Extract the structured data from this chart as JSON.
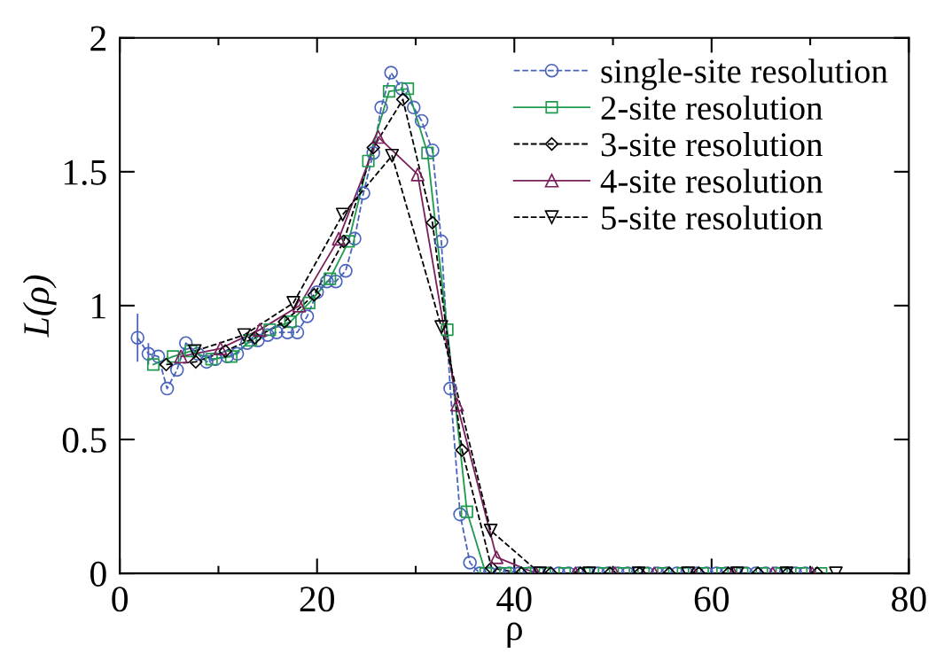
{
  "chart_data": {
    "type": "line",
    "xlabel": "ρ",
    "ylabel": "L(ρ)",
    "xlim": [
      0,
      80
    ],
    "ylim": [
      0,
      2
    ],
    "xticks": [
      0,
      20,
      40,
      60,
      80
    ],
    "yticks": [
      0,
      0.5,
      1,
      1.5,
      2
    ],
    "legend": "top right",
    "grid": false,
    "series": [
      {
        "name": "single-site resolution",
        "color": "#4a64bd",
        "marker": "circle",
        "line_style": "dashed",
        "x": [
          1.8,
          2.9,
          3.9,
          4.8,
          5.8,
          6.7,
          7.9,
          8.8,
          9.7,
          10.9,
          11.9,
          12.9,
          14.0,
          15.0,
          15.9,
          17.0,
          18.0,
          19.0,
          20.0,
          21.0,
          21.9,
          22.9,
          23.8,
          24.7,
          25.7,
          26.5,
          27.5,
          28.6,
          29.8,
          30.6,
          31.7,
          32.6,
          33.5,
          34.5,
          35.5,
          36.5,
          37.5,
          38.5,
          39.5,
          40.5,
          41.5,
          42.5,
          43.5,
          44.5,
          45.5,
          46.5,
          47.5,
          48.5,
          49.5,
          50.5,
          51.5,
          52.5,
          53.5,
          54.5,
          55.5,
          56.5,
          57.5,
          58.5,
          59.5,
          60.5,
          61.5,
          62.5,
          63.5,
          64.5,
          65.5,
          66.5,
          67.5,
          68.5,
          69.5
        ],
        "values": [
          0.88,
          0.82,
          0.81,
          0.69,
          0.76,
          0.86,
          0.82,
          0.79,
          0.8,
          0.81,
          0.82,
          0.86,
          0.87,
          0.89,
          0.9,
          0.9,
          0.9,
          0.96,
          1.05,
          1.09,
          1.09,
          1.13,
          1.25,
          1.42,
          1.57,
          1.74,
          1.87,
          1.81,
          1.74,
          1.69,
          1.58,
          1.24,
          0.69,
          0.22,
          0.04,
          0,
          0,
          0,
          0,
          0,
          0,
          0,
          0,
          0,
          0,
          0,
          0,
          0,
          0,
          0,
          0,
          0,
          0,
          0,
          0,
          0,
          0,
          0,
          0,
          0,
          0,
          0,
          0,
          0,
          0,
          0,
          0,
          0,
          0
        ],
        "errors": [
          0.09,
          0.04,
          null,
          null,
          null,
          null,
          null,
          null,
          null,
          null,
          null,
          null,
          null,
          null,
          null,
          null,
          null,
          null,
          null,
          null,
          null,
          null,
          null,
          null,
          null,
          null,
          null,
          null,
          null,
          null,
          null,
          null,
          null,
          null,
          null,
          null,
          null,
          null,
          null,
          null,
          null,
          null,
          null,
          null,
          null,
          null,
          null,
          null,
          null,
          null,
          null,
          null,
          null,
          null,
          null,
          null,
          null,
          null,
          null,
          null,
          null,
          null,
          null,
          null,
          null,
          null,
          null,
          null,
          null
        ]
      },
      {
        "name": "2-site resolution",
        "color": "#1e9a4e",
        "marker": "square",
        "line_style": "solid",
        "x": [
          3.4,
          5.4,
          7.2,
          9.3,
          11.3,
          13.3,
          15.2,
          17.3,
          19.2,
          21.3,
          23.2,
          25.2,
          27.3,
          29.2,
          31.2,
          33.2,
          35.2,
          37.1,
          39.1,
          41.1,
          43.1,
          45.1,
          47.1,
          49.1,
          51.1,
          53.1,
          55.1,
          57.1,
          59.1,
          61.1,
          63.1,
          65.1,
          67.1,
          69.1,
          71.1
        ],
        "values": [
          0.78,
          0.81,
          0.83,
          0.8,
          0.81,
          0.87,
          0.91,
          0.94,
          1.01,
          1.1,
          1.24,
          1.54,
          1.8,
          1.81,
          1.57,
          0.91,
          0.23,
          0,
          0,
          0,
          0,
          0,
          0,
          0,
          0,
          0,
          0,
          0,
          0,
          0,
          0,
          0,
          0,
          0,
          0
        ]
      },
      {
        "name": "3-site resolution",
        "color": "#000000",
        "marker": "diamond",
        "line_style": "dashed",
        "x": [
          4.7,
          7.7,
          10.7,
          13.7,
          16.7,
          19.7,
          22.7,
          25.7,
          28.7,
          31.7,
          34.7,
          37.7,
          40.7,
          43.7,
          46.7,
          49.7,
          52.7,
          55.7,
          58.7,
          61.7,
          64.7,
          67.7,
          70.7
        ],
        "values": [
          0.78,
          0.79,
          0.83,
          0.88,
          0.94,
          1.04,
          1.24,
          1.59,
          1.77,
          1.31,
          0.46,
          0.02,
          0,
          0,
          0,
          0,
          0,
          0,
          0,
          0,
          0,
          0,
          0
        ]
      },
      {
        "name": "4-site resolution",
        "color": "#7a1f5c",
        "marker": "triangle",
        "line_style": "solid",
        "x": [
          6.2,
          10.2,
          14.2,
          18.2,
          22.2,
          26.2,
          30.2,
          34.2,
          38.2,
          42.2,
          46.2,
          50.2,
          54.2,
          58.2,
          62.2,
          66.2,
          70.2
        ],
        "values": [
          0.81,
          0.84,
          0.91,
          1.0,
          1.25,
          1.63,
          1.49,
          0.63,
          0.06,
          0,
          0,
          0,
          0,
          0,
          0,
          0,
          0
        ]
      },
      {
        "name": "5-site resolution",
        "color": "#000000",
        "marker": "triangle_down",
        "line_style": "dashed",
        "x": [
          7.6,
          12.6,
          17.6,
          22.6,
          27.6,
          32.6,
          37.6,
          42.6,
          47.6,
          52.6,
          57.6,
          62.6,
          67.6,
          72.6
        ],
        "values": [
          0.83,
          0.89,
          1.01,
          1.34,
          1.56,
          0.92,
          0.16,
          0,
          0,
          0,
          0,
          0,
          0,
          0
        ]
      }
    ]
  }
}
